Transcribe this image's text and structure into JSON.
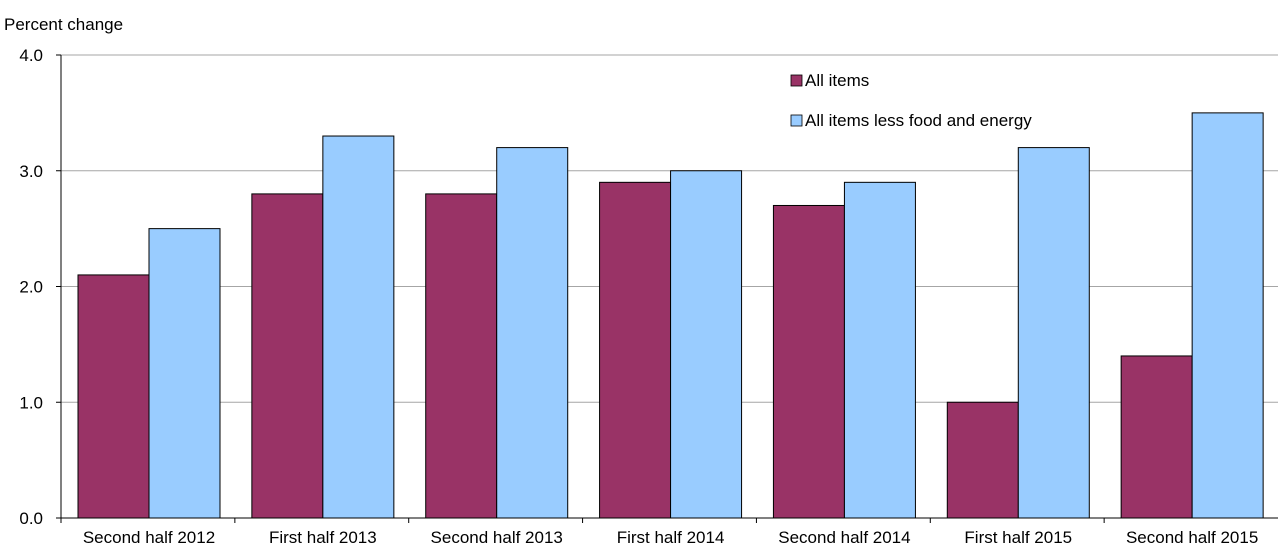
{
  "chart_data": {
    "type": "bar",
    "ylabel": "Percent change",
    "ylim": [
      0,
      4
    ],
    "yticks": [
      "0.0",
      "1.0",
      "2.0",
      "3.0",
      "4.0"
    ],
    "ytick_values": [
      0,
      1,
      2,
      3,
      4
    ],
    "categories": [
      "Second half 2012",
      "First half 2013",
      "Second half 2013",
      "First half 2014",
      "Second half 2014",
      "First half 2015",
      "Second half 2015"
    ],
    "series": [
      {
        "name": "All items",
        "color": "#993366",
        "values": [
          2.1,
          2.8,
          2.8,
          2.9,
          2.7,
          1.0,
          1.4
        ]
      },
      {
        "name": "All items less food and energy",
        "color": "#99CCFF",
        "values": [
          2.5,
          3.3,
          3.2,
          3.0,
          2.9,
          3.2,
          3.5
        ]
      }
    ],
    "grid": true,
    "legend_position": "top-right"
  }
}
